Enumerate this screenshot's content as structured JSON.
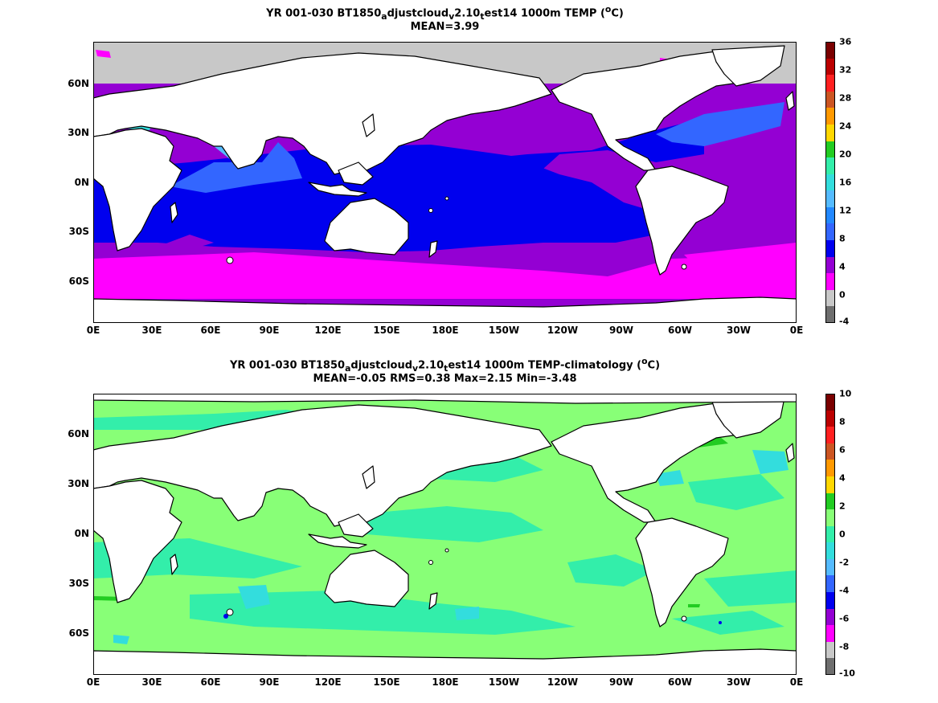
{
  "panels": [
    {
      "title": "YR 001-030 BT1850",
      "title_suffix": " 1000m TEMP (",
      "title_unit": "C)",
      "subtitle": "MEAN=3.99",
      "colorbar_ticks": [
        "36",
        "32",
        "28",
        "24",
        "20",
        "16",
        "12",
        "8",
        "4",
        "0",
        "-4"
      ],
      "colorbar_colors": [
        "#7a0000",
        "#bb0000",
        "#ff2020",
        "#cc5522",
        "#ff9900",
        "#ffd700",
        "#22cc22",
        "#33eeaa",
        "#33dddd",
        "#55bbff",
        "#2288ff",
        "#3366ff",
        "#0000ee",
        "#9400d3",
        "#ff00ff",
        "#c8c8c8",
        "#6e6e6e"
      ]
    },
    {
      "title": "YR 001-030 BT1850",
      "title_suffix": " 1000m TEMP-climatology (",
      "title_unit": "C)",
      "subtitle": "MEAN=-0.05   RMS=0.38   Max=2.15   Min=-3.48",
      "colorbar_ticks": [
        "10",
        "8",
        "6",
        "4",
        "2",
        "0",
        "-2",
        "-4",
        "-6",
        "-8",
        "-10"
      ],
      "colorbar_colors": [
        "#7a0000",
        "#bb0000",
        "#ff2020",
        "#cc5522",
        "#ff9900",
        "#ffd700",
        "#22cc22",
        "#88ff77",
        "#33eeaa",
        "#33dddd",
        "#55bbff",
        "#3366ff",
        "#0000ee",
        "#9400d3",
        "#ff00ff",
        "#c8c8c8",
        "#6e6e6e"
      ]
    }
  ],
  "title_parts": [
    "a",
    "djustcloud",
    "v",
    "2.10",
    "t",
    "est14",
    "o"
  ],
  "x_ticks": [
    "0E",
    "30E",
    "60E",
    "90E",
    "120E",
    "150E",
    "180E",
    "150W",
    "120W",
    "90W",
    "60W",
    "30W",
    "0E"
  ],
  "y_ticks": [
    "60N",
    "30N",
    "0N",
    "30S",
    "60S"
  ],
  "colors": {
    "land": "#ffffff",
    "coast": "#000000",
    "top_fill_colors": [
      "#9400d3",
      "#0000ee",
      "#3366ff",
      "#ff00ff",
      "#c8c8c8",
      "#33dddd"
    ],
    "bottom_fill_colors": [
      "#88ff77",
      "#33eeaa",
      "#33dddd",
      "#22cc22",
      "#0000ee"
    ]
  }
}
